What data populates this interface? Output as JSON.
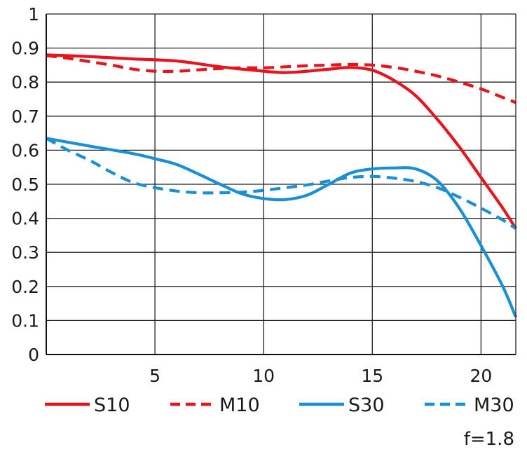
{
  "chart_data": {
    "type": "line",
    "title": "",
    "xlabel": "",
    "ylabel": "",
    "xlim": [
      0,
      21.6
    ],
    "ylim": [
      0,
      1
    ],
    "x_ticks": [
      5,
      10,
      15,
      20
    ],
    "y_ticks": [
      0,
      0.1,
      0.2,
      0.3,
      0.4,
      0.5,
      0.6,
      0.7,
      0.8,
      0.9,
      1
    ],
    "y_tick_labels": [
      "0",
      "0.1",
      "0.2",
      "0.3",
      "0.4",
      "0.5",
      "0.6",
      "0.7",
      "0.8",
      "0.9",
      "1"
    ],
    "grid": true,
    "legend_position": "bottom",
    "annotation": "f=1.8",
    "series": [
      {
        "name": "S10",
        "color": "#e8141b",
        "style": "solid",
        "points": [
          [
            0,
            0.88
          ],
          [
            2,
            0.875
          ],
          [
            4,
            0.868
          ],
          [
            6,
            0.862
          ],
          [
            8,
            0.845
          ],
          [
            10,
            0.832
          ],
          [
            11,
            0.828
          ],
          [
            12,
            0.832
          ],
          [
            13,
            0.838
          ],
          [
            14,
            0.843
          ],
          [
            15,
            0.835
          ],
          [
            16,
            0.805
          ],
          [
            17,
            0.76
          ],
          [
            18,
            0.69
          ],
          [
            19,
            0.61
          ],
          [
            20,
            0.52
          ],
          [
            21,
            0.43
          ],
          [
            21.6,
            0.37
          ]
        ]
      },
      {
        "name": "M10",
        "color": "#e8141b",
        "style": "dashed",
        "points": [
          [
            0,
            0.878
          ],
          [
            1,
            0.87
          ],
          [
            2,
            0.86
          ],
          [
            3,
            0.85
          ],
          [
            4,
            0.838
          ],
          [
            5,
            0.832
          ],
          [
            6,
            0.832
          ],
          [
            7,
            0.836
          ],
          [
            8,
            0.84
          ],
          [
            9,
            0.842
          ],
          [
            10,
            0.842
          ],
          [
            11,
            0.845
          ],
          [
            12,
            0.848
          ],
          [
            13,
            0.85
          ],
          [
            14,
            0.852
          ],
          [
            15,
            0.85
          ],
          [
            16,
            0.843
          ],
          [
            17,
            0.832
          ],
          [
            18,
            0.818
          ],
          [
            19,
            0.8
          ],
          [
            20,
            0.78
          ],
          [
            21,
            0.755
          ],
          [
            21.6,
            0.74
          ]
        ]
      },
      {
        "name": "S30",
        "color": "#1a8fd6",
        "style": "solid",
        "points": [
          [
            0,
            0.635
          ],
          [
            2,
            0.612
          ],
          [
            4,
            0.59
          ],
          [
            5,
            0.575
          ],
          [
            6,
            0.558
          ],
          [
            7,
            0.53
          ],
          [
            8,
            0.5
          ],
          [
            9,
            0.472
          ],
          [
            10,
            0.458
          ],
          [
            11,
            0.455
          ],
          [
            12,
            0.468
          ],
          [
            13,
            0.5
          ],
          [
            14,
            0.533
          ],
          [
            15,
            0.545
          ],
          [
            16,
            0.548
          ],
          [
            17,
            0.545
          ],
          [
            18,
            0.51
          ],
          [
            19,
            0.43
          ],
          [
            20,
            0.32
          ],
          [
            21,
            0.2
          ],
          [
            21.6,
            0.11
          ]
        ]
      },
      {
        "name": "M30",
        "color": "#1a8fd6",
        "style": "dashed",
        "points": [
          [
            0,
            0.635
          ],
          [
            1,
            0.6
          ],
          [
            2,
            0.57
          ],
          [
            3,
            0.535
          ],
          [
            4,
            0.505
          ],
          [
            5,
            0.49
          ],
          [
            6,
            0.48
          ],
          [
            7,
            0.475
          ],
          [
            8,
            0.475
          ],
          [
            9,
            0.477
          ],
          [
            10,
            0.482
          ],
          [
            11,
            0.49
          ],
          [
            12,
            0.498
          ],
          [
            13,
            0.51
          ],
          [
            14,
            0.52
          ],
          [
            15,
            0.523
          ],
          [
            16,
            0.518
          ],
          [
            17,
            0.508
          ],
          [
            18,
            0.49
          ],
          [
            19,
            0.462
          ],
          [
            20,
            0.43
          ],
          [
            21,
            0.395
          ],
          [
            21.6,
            0.37
          ]
        ]
      }
    ]
  }
}
